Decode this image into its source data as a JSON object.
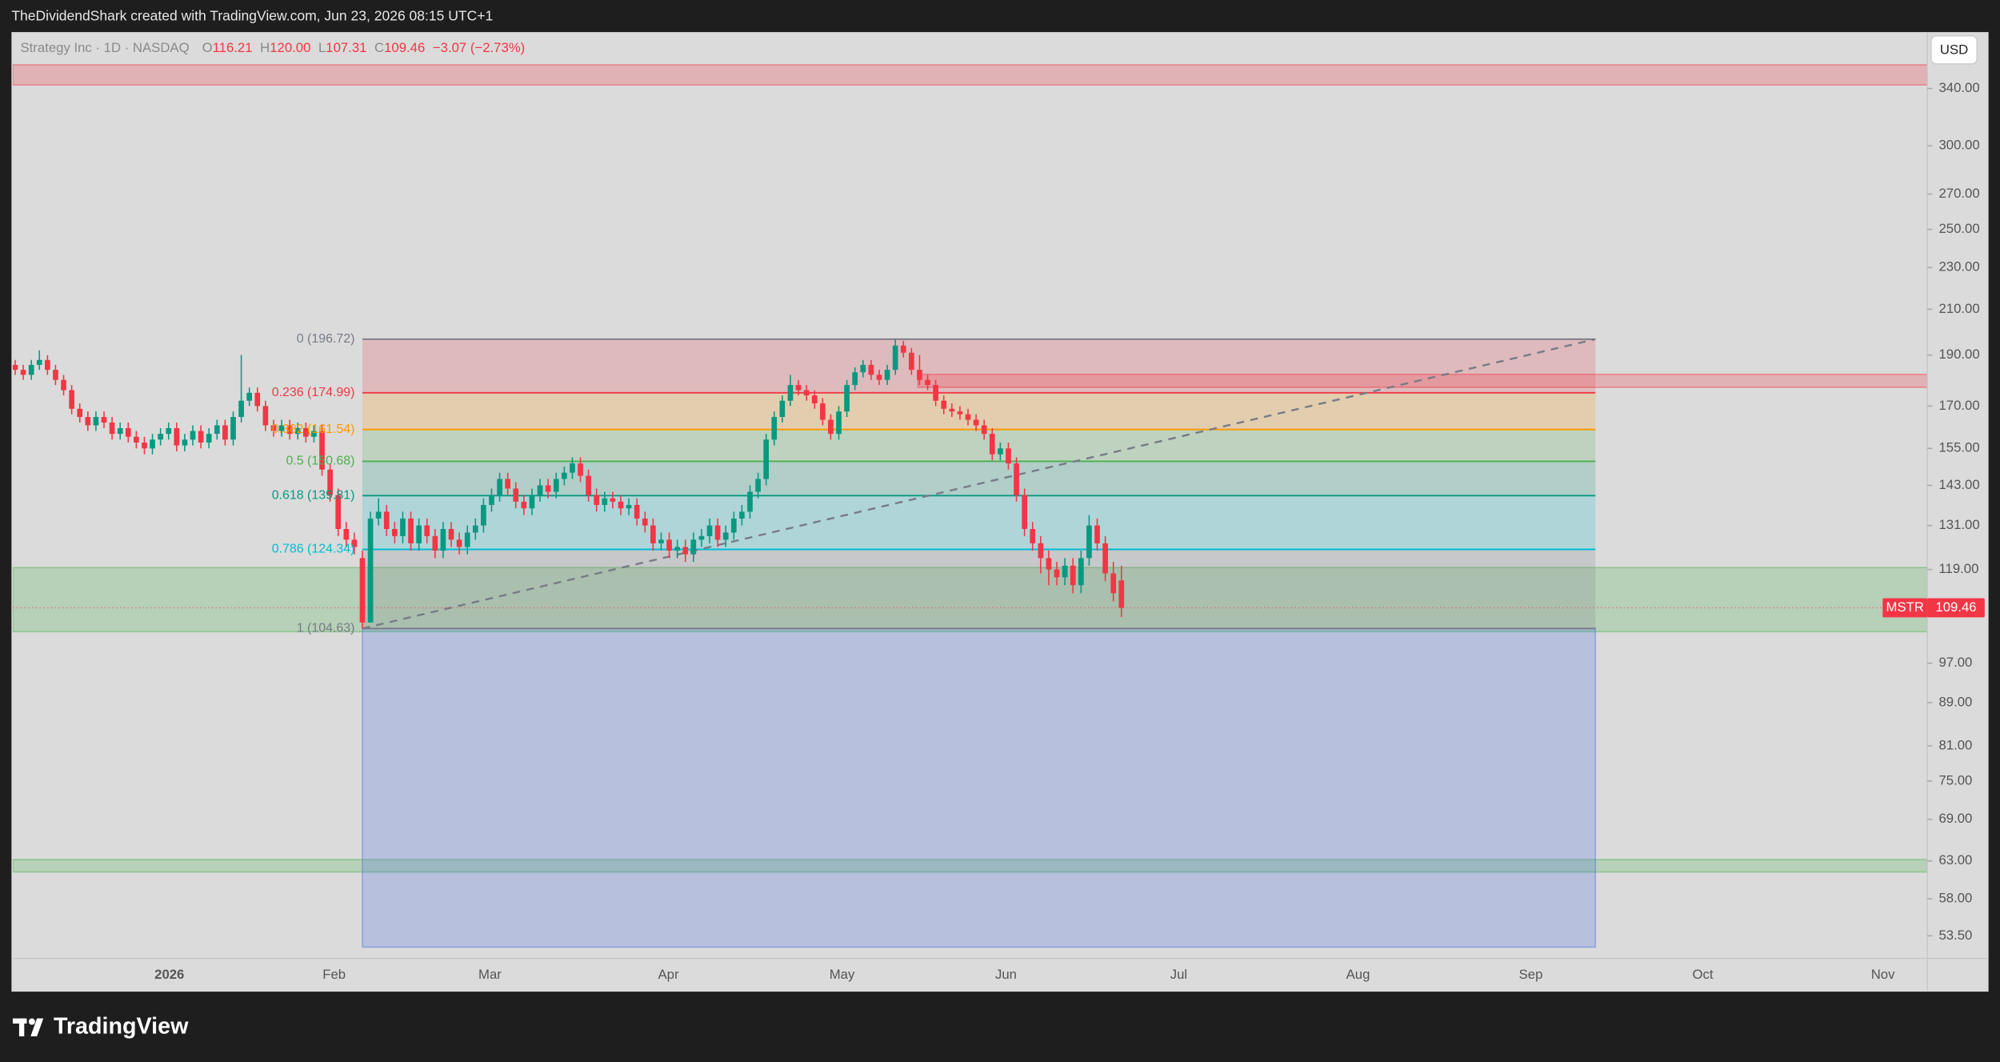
{
  "header": {
    "credit": "TheDividendShark created with TradingView.com, Jun 23, 2026 08:15 UTC+1"
  },
  "footer": {
    "brand": "TradingView"
  },
  "chart_data": {
    "type": "candlestick",
    "log_scale": true,
    "grid": false,
    "legend": {
      "symbol": "Strategy Inc · 1D · NASDAQ",
      "ohlc": [
        {
          "label": "O",
          "value": 116.21
        },
        {
          "label": "H",
          "value": 120,
          "value_label": "120.00"
        },
        {
          "label": "L",
          "value": 107.31
        },
        {
          "label": "C",
          "value": 109.46
        }
      ],
      "change": "−3.07 (−2.73%)"
    },
    "currency": "USD",
    "ticker": "MSTR",
    "last_price": 109.46,
    "up_color": "#089981",
    "down_color": "#f23645",
    "xlim": [
      -0.3,
      236.8
    ],
    "ylim": [
      47.5,
      384.5
    ],
    "xticks": [
      {
        "value": 19.1,
        "label": "2026",
        "bold": true
      },
      {
        "value": 39.5,
        "label": "Feb"
      },
      {
        "value": 58.8,
        "label": "Mar"
      },
      {
        "value": 80.9,
        "label": "Apr"
      },
      {
        "value": 102.4,
        "label": "May"
      },
      {
        "value": 122.7,
        "label": "Jun"
      },
      {
        "value": 144.1,
        "label": "Jul"
      },
      {
        "value": 166.3,
        "label": "Aug"
      },
      {
        "value": 187.7,
        "label": "Sep"
      },
      {
        "value": 209,
        "label": "Oct"
      },
      {
        "value": 231.3,
        "label": "Nov"
      }
    ],
    "yticks": [
      {
        "value": 340,
        "label": "340.00"
      },
      {
        "value": 300,
        "label": "300.00"
      },
      {
        "value": 270,
        "label": "270.00"
      },
      {
        "value": 250,
        "label": "250.00"
      },
      {
        "value": 230,
        "label": "230.00"
      },
      {
        "value": 210,
        "label": "210.00"
      },
      {
        "value": 190,
        "label": "190.00"
      },
      {
        "value": 170,
        "label": "170.00"
      },
      {
        "value": 155,
        "label": "155.00"
      },
      {
        "value": 143,
        "label": "143.00"
      },
      {
        "value": 131,
        "label": "131.00"
      },
      {
        "value": 119,
        "label": "119.00"
      },
      {
        "value": 97,
        "label": "97.00"
      },
      {
        "value": 89,
        "label": "89.00"
      },
      {
        "value": 81,
        "label": "81.00"
      },
      {
        "value": 75,
        "label": "75.00"
      },
      {
        "value": 69,
        "label": "69.00"
      },
      {
        "value": 63,
        "label": "63.00"
      },
      {
        "value": 58,
        "label": "58.00"
      },
      {
        "value": 53.5,
        "label": "53.50"
      }
    ],
    "zones": [
      {
        "from": 342.6,
        "to": 358,
        "color": "#f23645"
      },
      {
        "from": 177.1,
        "to": 182.2,
        "color": "#f23645",
        "start": 111.8
      },
      {
        "from": 103.9,
        "to": 119.5,
        "color": "#4caf50"
      },
      {
        "from": 61.5,
        "to": 63.2,
        "color": "#4caf50"
      },
      {
        "from": 52.2,
        "to": 104.63,
        "color": "#4a6fe3",
        "start": 43,
        "end": 195.7
      }
    ],
    "fib": {
      "start": 43,
      "end": 195.7,
      "trend_color": "#787b86",
      "levels": [
        {
          "value": 196.72,
          "label": "0 (196.72)",
          "color": "#787b86"
        },
        {
          "value": 174.99,
          "label": "0.236 (174.99)",
          "color": "#f23645"
        },
        {
          "value": 161.54,
          "label": "0.382 (161.54)",
          "color": "#ff9800"
        },
        {
          "value": 150.68,
          "label": "0.5 (150.68)",
          "color": "#4caf50"
        },
        {
          "value": 139.81,
          "label": "0.618 (139.81)",
          "color": "#089981"
        },
        {
          "value": 124.34,
          "label": "0.786 (124.34)",
          "color": "#00bcd4"
        },
        {
          "value": 104.63,
          "label": "1 (104.63)",
          "color": "#787b86"
        }
      ]
    },
    "candles": {
      "open": [
        186,
        184,
        182,
        186,
        188,
        184,
        180,
        176,
        169,
        166,
        163,
        166,
        164,
        160,
        162,
        159,
        157,
        155,
        158,
        160,
        162,
        156,
        158,
        161,
        157,
        160,
        163,
        158,
        166,
        172,
        175,
        170,
        163,
        161,
        163,
        160,
        162,
        159,
        161,
        148,
        140,
        130,
        127,
        122,
        106,
        133,
        135,
        130,
        128,
        133,
        126,
        131,
        128,
        124,
        130,
        127,
        125,
        129,
        131,
        137,
        140,
        145,
        142,
        138,
        136,
        140,
        143,
        141,
        145,
        147,
        150,
        146,
        140,
        137,
        139,
        138,
        136,
        137,
        133,
        131,
        126,
        127,
        124,
        125,
        123,
        127,
        128,
        131,
        127,
        129,
        133,
        135,
        141,
        145,
        158,
        166,
        172,
        178,
        176,
        174,
        171,
        165,
        160,
        168,
        178,
        183,
        186,
        182,
        180,
        184,
        194,
        191,
        184,
        180,
        178,
        172,
        169,
        168,
        167,
        165,
        163,
        160,
        153,
        155,
        150,
        140,
        130,
        126,
        122,
        119,
        117,
        120,
        115,
        122,
        131,
        126,
        118,
        116.21
      ],
      "high": [
        188,
        186,
        188,
        192,
        190,
        186,
        182,
        178,
        171,
        168,
        168,
        168,
        166,
        164,
        164,
        161,
        159,
        160,
        162,
        164,
        164,
        160,
        163,
        163,
        162,
        165,
        165,
        168,
        190,
        177,
        177,
        172,
        165,
        165,
        165,
        164,
        164,
        163,
        163,
        150,
        142,
        132,
        129,
        124,
        135,
        139,
        137,
        132,
        135,
        135,
        133,
        133,
        130,
        132,
        132,
        129,
        131,
        133,
        139,
        142,
        147,
        147,
        144,
        140,
        142,
        145,
        145,
        147,
        149,
        152,
        152,
        148,
        142,
        141,
        141,
        140,
        139,
        139,
        135,
        133,
        129,
        129,
        127,
        127,
        129,
        130,
        133,
        133,
        131,
        135,
        137,
        143,
        147,
        160,
        168,
        174,
        182,
        180,
        178,
        176,
        173,
        167,
        170,
        180,
        185,
        188,
        188,
        184,
        186,
        196.72,
        196,
        193,
        190,
        182,
        180,
        174,
        171,
        170,
        169,
        167,
        165,
        162,
        157,
        157,
        152,
        142,
        132,
        128,
        124,
        121,
        122,
        122,
        124,
        134,
        133,
        128,
        121,
        120
      ],
      "low": [
        182,
        180,
        180,
        184,
        182,
        178,
        174,
        167,
        164,
        161,
        161,
        162,
        158,
        158,
        157,
        155,
        153,
        153,
        156,
        158,
        154,
        154,
        156,
        155,
        155,
        158,
        156,
        156,
        164,
        170,
        168,
        161,
        159,
        159,
        158,
        158,
        157,
        157,
        146,
        138,
        128,
        125,
        123,
        104.63,
        106,
        131,
        128,
        126,
        126,
        124,
        124,
        126,
        122,
        122,
        125,
        123,
        123,
        127,
        129,
        135,
        138,
        140,
        136,
        134,
        134,
        138,
        139,
        139,
        143,
        145,
        144,
        138,
        135,
        135,
        136,
        134,
        134,
        131,
        129,
        124,
        124,
        122,
        122,
        121,
        121,
        125,
        126,
        125,
        125,
        127,
        131,
        133,
        139,
        143,
        156,
        164,
        170,
        174,
        172,
        169,
        163,
        158,
        158,
        166,
        176,
        181,
        180,
        178,
        178,
        182,
        189,
        182,
        178,
        176,
        170,
        167,
        166,
        165,
        163,
        161,
        158,
        151,
        151,
        148,
        138,
        128,
        124,
        118,
        115,
        115,
        115,
        113,
        113,
        120,
        124,
        116,
        111,
        107.31
      ],
      "close": [
        184,
        182,
        186,
        188,
        184,
        180,
        176,
        169,
        166,
        163,
        166,
        164,
        160,
        162,
        159,
        157,
        155,
        158,
        160,
        162,
        156,
        158,
        161,
        157,
        160,
        163,
        158,
        166,
        172,
        175,
        170,
        163,
        161,
        163,
        160,
        162,
        159,
        161,
        148,
        140,
        130,
        127,
        125,
        106,
        133,
        135,
        130,
        128,
        133,
        126,
        131,
        128,
        124,
        130,
        127,
        125,
        129,
        131,
        137,
        140,
        145,
        142,
        138,
        136,
        140,
        143,
        141,
        145,
        147,
        150,
        146,
        140,
        137,
        139,
        138,
        136,
        137,
        133,
        131,
        126,
        127,
        124,
        125,
        123,
        127,
        128,
        131,
        127,
        129,
        133,
        135,
        141,
        145,
        158,
        166,
        172,
        178,
        176,
        174,
        171,
        165,
        160,
        168,
        178,
        183,
        186,
        182,
        180,
        184,
        194,
        191,
        184,
        180,
        178,
        172,
        169,
        168,
        167,
        165,
        163,
        160,
        153,
        155,
        150,
        140,
        130,
        126,
        122,
        119,
        117,
        120,
        115,
        122,
        131,
        126,
        118,
        113,
        109.46
      ]
    }
  }
}
